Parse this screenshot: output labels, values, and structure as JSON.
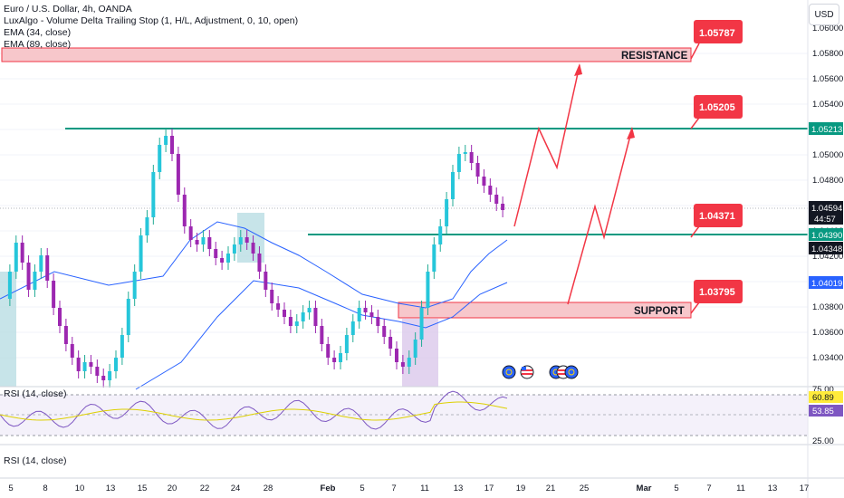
{
  "legend": {
    "symbol": "Euro / U.S. Dollar, 4h, OANDA",
    "indicator_trailing": "LuxAlgo - Volume Delta Trailing Stop (1, H/L, Adjustment, 0, 10, open)",
    "ema34": "EMA (34, close)",
    "ema89": "EMA (89, close)"
  },
  "currency_button": "USD",
  "price_axis": {
    "ticks": [
      "1.05800",
      "1.05600",
      "1.05400",
      "1.05200",
      "1.05000",
      "1.04800",
      "1.04600",
      "1.04400",
      "1.04200",
      "1.04000",
      "1.03800",
      "1.03600",
      "1.03400"
    ],
    "top_tick_partial": "1.06000"
  },
  "price_tags": {
    "resistance_line": "1.05213",
    "last_price": "1.04594",
    "countdown": "44:57",
    "support_line": "1.04390",
    "ema_fast": "1.04348",
    "ema_slow": "1.04019",
    "colors": {
      "teal": "#089981",
      "dark": "#131722",
      "red": "#f23645",
      "blue": "#2962ff"
    }
  },
  "zones": {
    "resistance_label": "RESISTANCE",
    "support_label": "SUPPORT"
  },
  "callouts": [
    "1.05787",
    "1.05205",
    "1.04371",
    "1.03795"
  ],
  "rsi": {
    "label": "RSI (14, close)",
    "upper": "75.00",
    "lower": "25.00",
    "value_yellow": "60.89",
    "value_purple": "53.85"
  },
  "rsi_pane2_label": "RSI (14, close)",
  "time_axis": [
    "5",
    "8",
    "10",
    "13",
    "15",
    "20",
    "22",
    "24",
    "28",
    "Feb",
    "5",
    "7",
    "11",
    "13",
    "17",
    "19",
    "21",
    "25",
    "Mar",
    "5",
    "7",
    "11",
    "13",
    "17"
  ],
  "event_icons": [
    "eu-flag-icon",
    "us-flag-icon",
    "eu-flag-icon",
    "us-flag-icon",
    "eu-flag-icon"
  ]
}
